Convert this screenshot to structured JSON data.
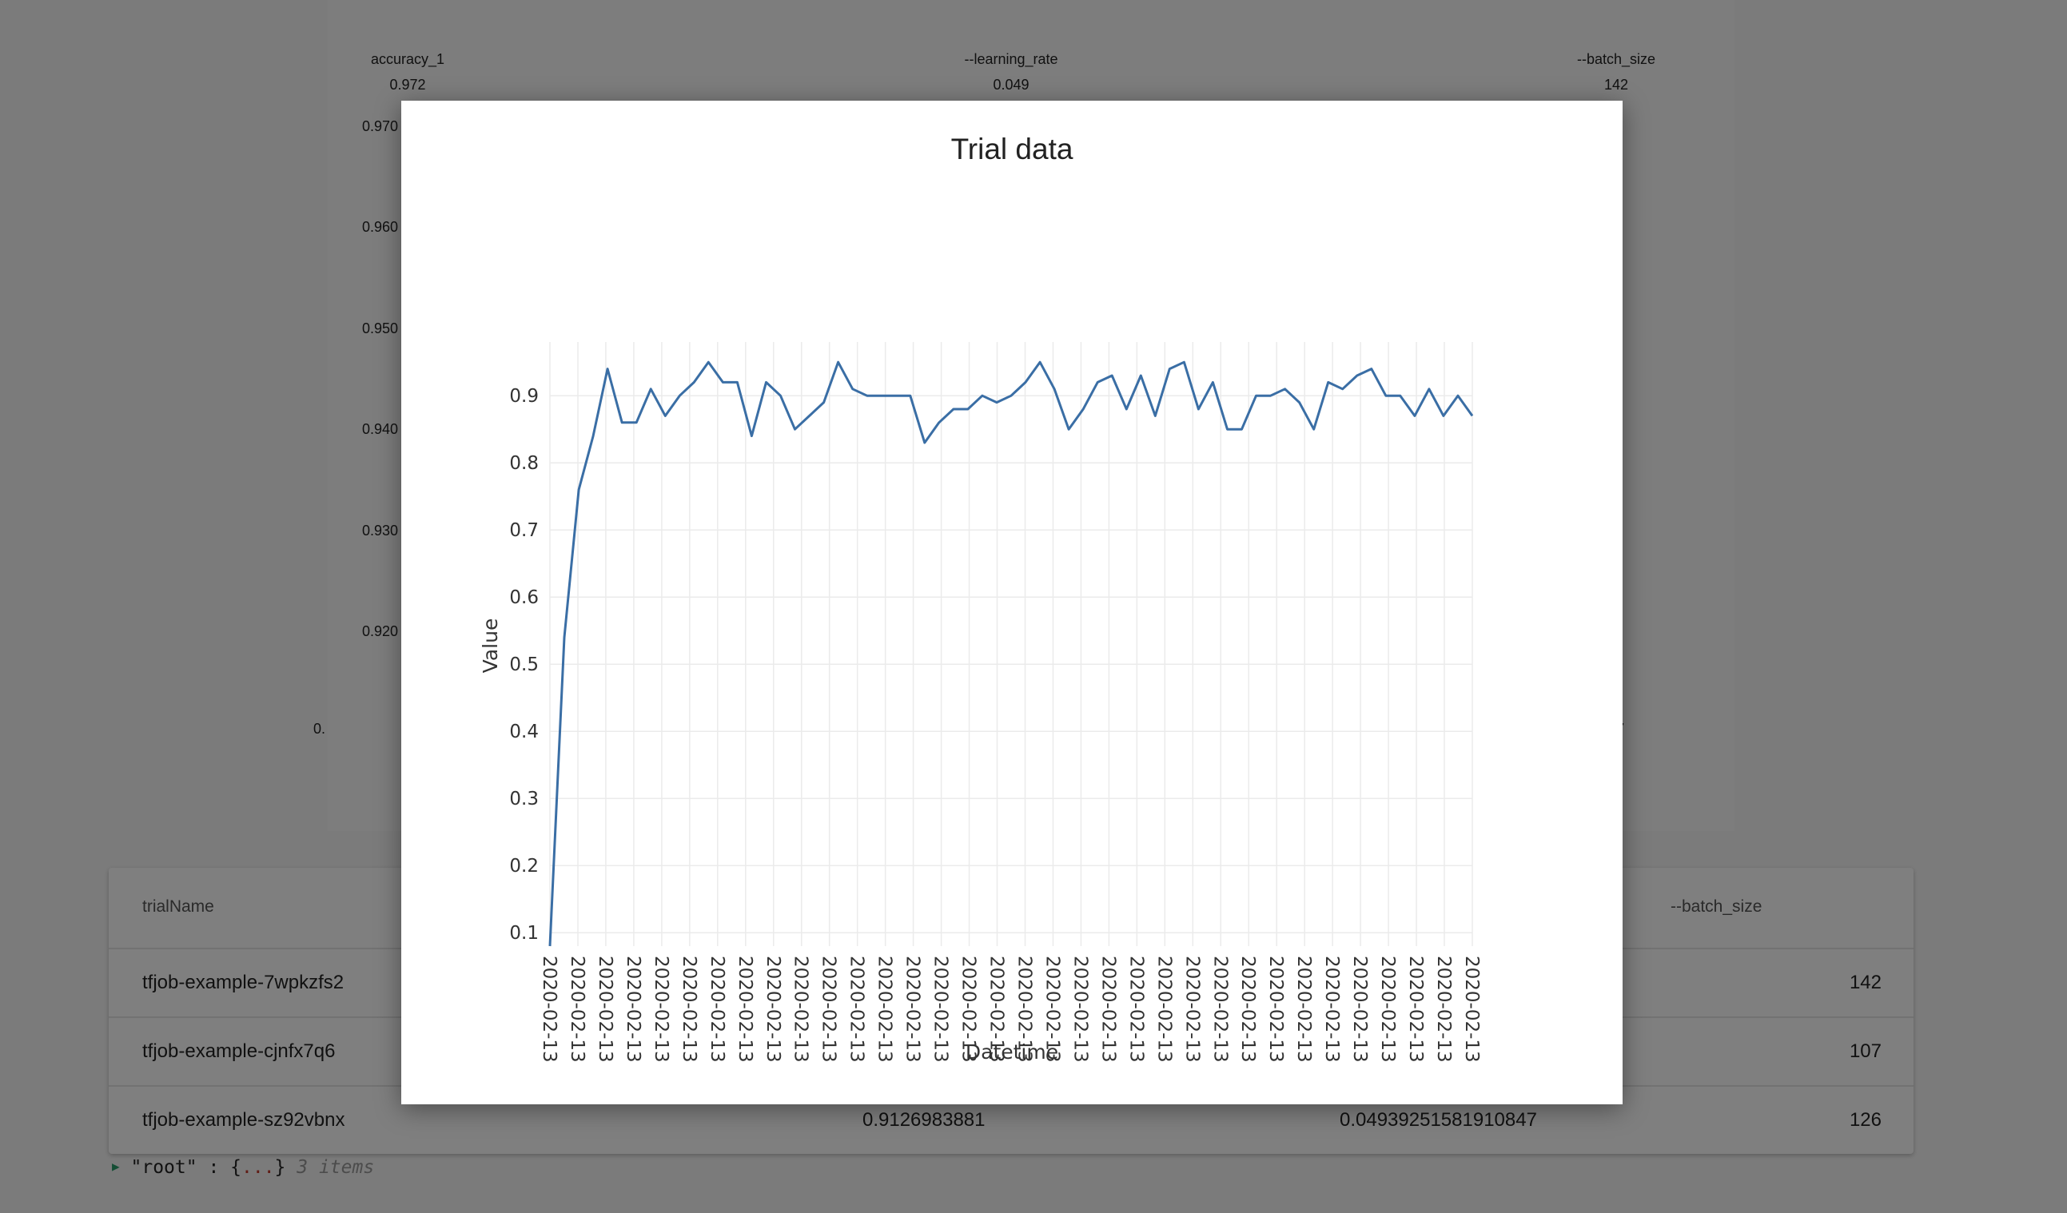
{
  "background": {
    "axes": [
      {
        "title": "accuracy_1",
        "max": "0.972"
      },
      {
        "title": "--learning_rate",
        "max": "0.049"
      },
      {
        "title": "--batch_size",
        "max": "142"
      }
    ],
    "accuracy_ticks": [
      "0.970",
      "0.960",
      "0.950",
      "0.940",
      "0.930",
      "0.920"
    ],
    "partial_left": "0.",
    "partial_right": "7"
  },
  "table": {
    "headers": [
      "trialName",
      "--batch_size"
    ],
    "rows": [
      {
        "name": "tfjob-example-7wpkzfs2",
        "accuracy": "",
        "learning_rate": "",
        "batch_size": "142"
      },
      {
        "name": "tfjob-example-cjnfx7q6",
        "accuracy": "",
        "learning_rate": "",
        "batch_size": "107"
      },
      {
        "name": "tfjob-example-sz92vbnx",
        "accuracy": "0.9126983881",
        "learning_rate": "0.04939251581910847",
        "batch_size": "126"
      }
    ]
  },
  "json_viewer": {
    "key": "\"root\"",
    "sep": " : ",
    "open": "{",
    "dots": "...",
    "close": "}",
    "count": "3 items"
  },
  "chart_data": {
    "type": "line",
    "title": "Trial data",
    "xlabel": "Datetime",
    "ylabel": "Value",
    "line_color": "#3a6ea5",
    "ylim": [
      0.08,
      0.98
    ],
    "yticks": [
      0.1,
      0.2,
      0.3,
      0.4,
      0.5,
      0.6,
      0.7,
      0.8,
      0.9
    ],
    "x_tick_label": "2020-02-13",
    "x_tick_count": 34,
    "series": [
      {
        "name": "Value",
        "values": [
          0.08,
          0.54,
          0.76,
          0.84,
          0.94,
          0.86,
          0.86,
          0.91,
          0.87,
          0.9,
          0.92,
          0.95,
          0.92,
          0.92,
          0.84,
          0.92,
          0.9,
          0.85,
          0.87,
          0.89,
          0.95,
          0.91,
          0.9,
          0.9,
          0.9,
          0.9,
          0.83,
          0.86,
          0.88,
          0.88,
          0.9,
          0.89,
          0.9,
          0.92,
          0.95,
          0.91,
          0.85,
          0.88,
          0.92,
          0.93,
          0.88,
          0.93,
          0.87,
          0.94,
          0.95,
          0.88,
          0.92,
          0.85,
          0.85,
          0.9,
          0.9,
          0.91,
          0.89,
          0.85,
          0.92,
          0.91,
          0.93,
          0.94,
          0.9,
          0.9,
          0.87,
          0.91,
          0.87,
          0.9,
          0.87
        ]
      }
    ]
  }
}
